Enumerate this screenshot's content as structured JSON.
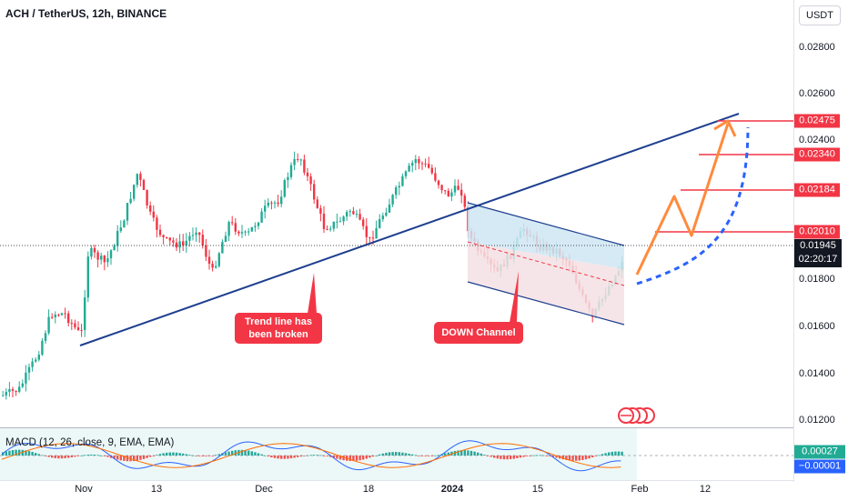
{
  "header": {
    "symbol_title": "ACH / TetherUS, 12h, BINANCE",
    "currency_button": "USDT"
  },
  "price_axis": {
    "ticks": [
      "0.02800",
      "0.02600",
      "0.02400",
      "0.01800",
      "0.01600",
      "0.01400",
      "0.01200"
    ]
  },
  "time_axis": {
    "labels": [
      "Nov",
      "13",
      "Dec",
      "18",
      "2024",
      "15",
      "Feb",
      "12"
    ]
  },
  "target_levels": [
    {
      "price": "0.02475",
      "color": "#f23645"
    },
    {
      "price": "0.02340",
      "color": "#f23645"
    },
    {
      "price": "0.02184",
      "color": "#f23645"
    },
    {
      "price": "0.02010",
      "color": "#f23645"
    }
  ],
  "current_price": {
    "price": "0.01945",
    "countdown": "02:20:17"
  },
  "annotations": {
    "trend_break": "Trend line has been broken",
    "down_channel": "DOWN Channel"
  },
  "macd": {
    "title": "MACD (12, 26, close, 9, EMA, EMA)",
    "value_pos": "0.00027",
    "value_neg": "−0.00001",
    "colors": {
      "macd": "#2962ff",
      "signal": "#ff6d00",
      "pos_hist": "#26a69a",
      "neg_hist": "#ef5350"
    }
  },
  "colors": {
    "up": "#22ab94",
    "down": "#f23645",
    "trendline": "#1e3f8f",
    "projection": "#ff8a3d",
    "dashed_curve": "#2962ff"
  },
  "icons": {
    "earnings": "multi-circle-icon"
  }
}
